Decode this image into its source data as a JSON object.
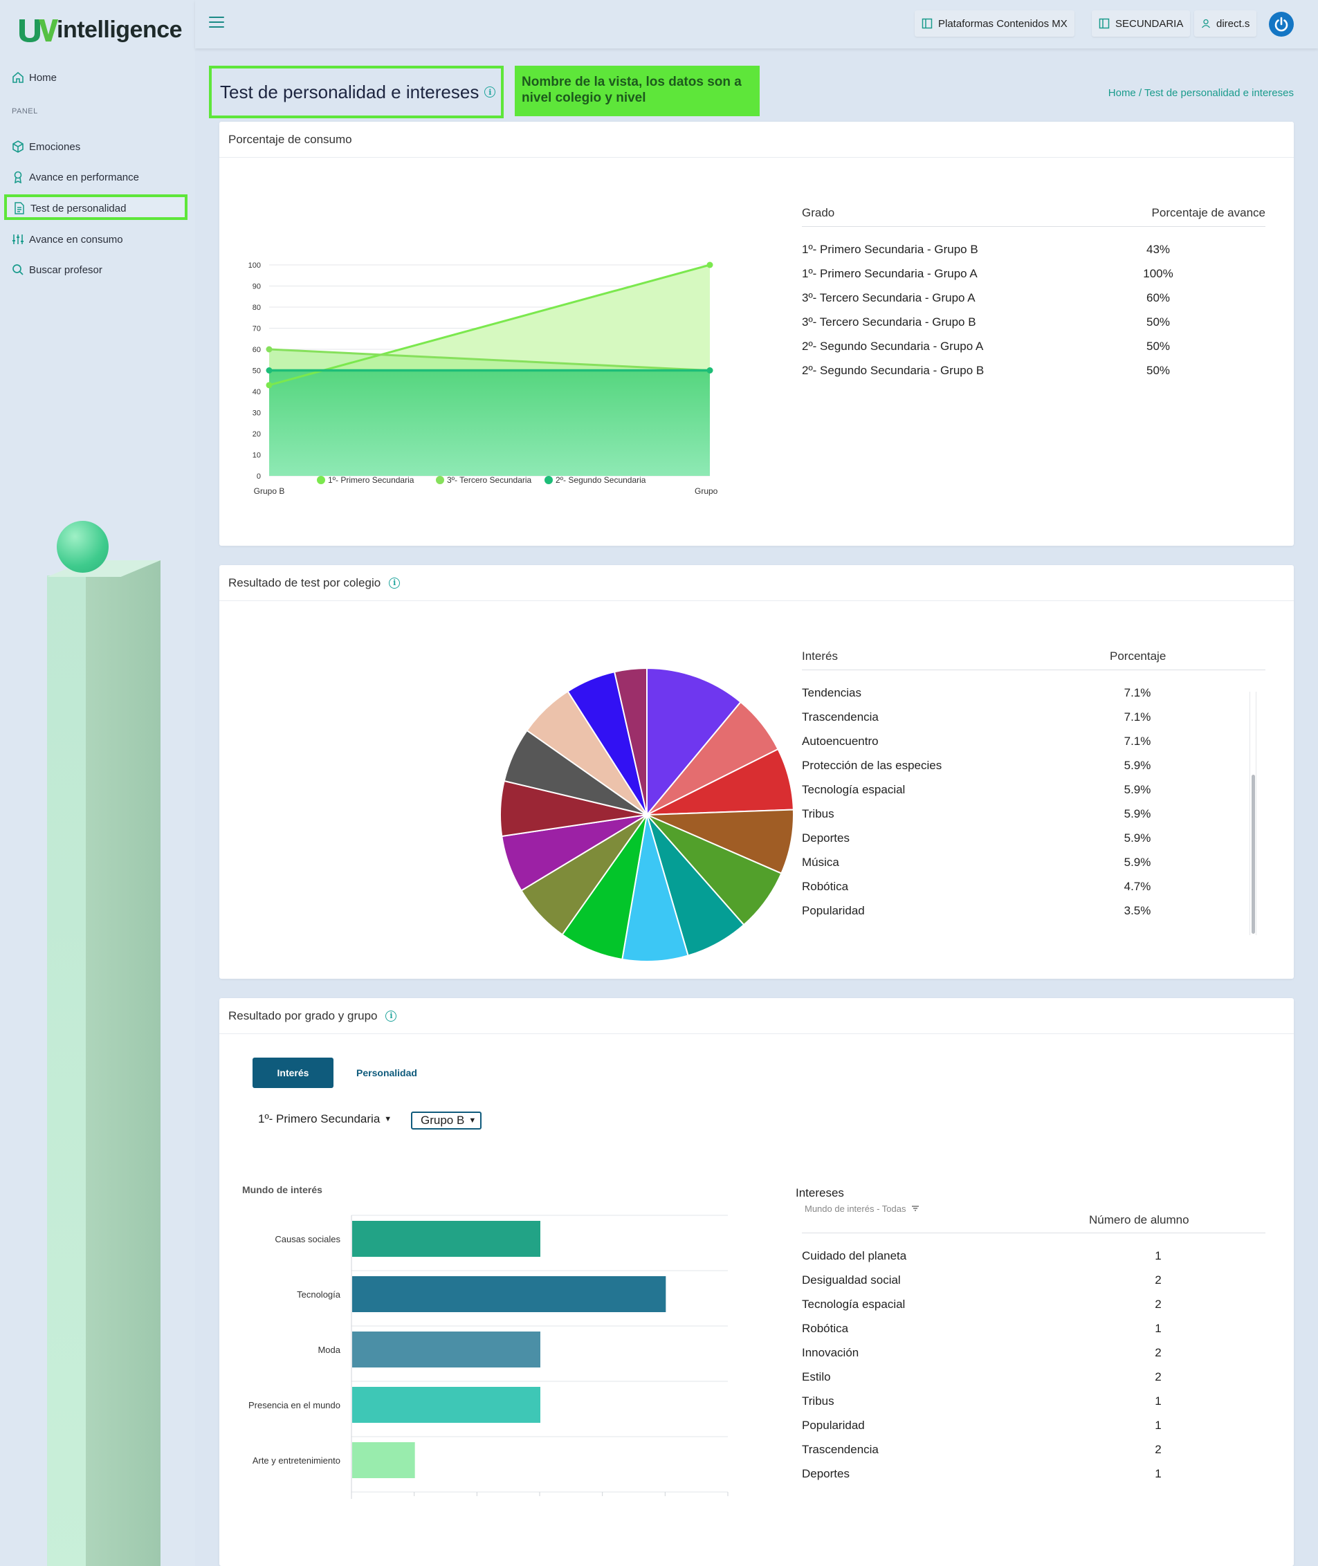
{
  "brand": {
    "logo_text": "intelligence"
  },
  "sidebar": {
    "home": "Home",
    "panel_label": "PANEL",
    "items": [
      {
        "label": "Emociones",
        "icon": "cube-icon"
      },
      {
        "label": "Avance en performance",
        "icon": "award-icon"
      },
      {
        "label": "Test de personalidad",
        "icon": "document-icon"
      },
      {
        "label": "Avance en consumo",
        "icon": "sliders-icon"
      },
      {
        "label": "Buscar profesor",
        "icon": "search-icon"
      }
    ]
  },
  "topbar": {
    "platform": "Plataformas Contenidos MX",
    "level": "SECUNDARIA",
    "user": "direct.s"
  },
  "header": {
    "title": "Test de personalidad e intereses",
    "note": "Nombre de la vista, los datos son a nivel colegio y nivel",
    "breadcrumb_home": "Home",
    "breadcrumb_sep": " / ",
    "breadcrumb_current": "Test de personalidad e intereses"
  },
  "consumo": {
    "title": "Porcentaje de consumo",
    "table_headers": [
      "Grado",
      "Porcentaje de avance"
    ],
    "rows": [
      [
        "1º- Primero Secundaria - Grupo B",
        "43%"
      ],
      [
        "1º- Primero Secundaria - Grupo A",
        "100%"
      ],
      [
        "3º- Tercero Secundaria - Grupo A",
        "60%"
      ],
      [
        "3º- Tercero Secundaria - Grupo B",
        "50%"
      ],
      [
        "2º- Segundo Secundaria - Grupo A",
        "50%"
      ],
      [
        "2º- Segundo Secundaria - Grupo B",
        "50%"
      ]
    ]
  },
  "colegio": {
    "title": "Resultado de test por colegio",
    "table_headers": [
      "Interés",
      "Porcentaje"
    ],
    "rows": [
      [
        "Tendencias",
        "7.1%"
      ],
      [
        "Trascendencia",
        "7.1%"
      ],
      [
        "Autoencuentro",
        "7.1%"
      ],
      [
        "Protección de las especies",
        "5.9%"
      ],
      [
        "Tecnología espacial",
        "5.9%"
      ],
      [
        "Tribus",
        "5.9%"
      ],
      [
        "Deportes",
        "5.9%"
      ],
      [
        "Música",
        "5.9%"
      ],
      [
        "Robótica",
        "4.7%"
      ],
      [
        "Popularidad",
        "3.5%"
      ]
    ]
  },
  "grado": {
    "title": "Resultado por grado y grupo",
    "tabs": [
      "Interés",
      "Personalidad"
    ],
    "grade_select": "1º- Primero Secundaria",
    "group_select": "Grupo B",
    "table_title": "Intereses",
    "table_filter": "Mundo de interés - Todas",
    "table_count_header": "Número de alumno",
    "rows": [
      [
        "Cuidado del planeta",
        "1"
      ],
      [
        "Desigualdad social",
        "2"
      ],
      [
        "Tecnología espacial",
        "2"
      ],
      [
        "Robótica",
        "1"
      ],
      [
        "Innovación",
        "2"
      ],
      [
        "Estilo",
        "2"
      ],
      [
        "Tribus",
        "1"
      ],
      [
        "Popularidad",
        "1"
      ],
      [
        "Trascendencia",
        "2"
      ],
      [
        "Deportes",
        "1"
      ]
    ]
  },
  "chart_data": [
    {
      "type": "area",
      "categories": [
        "Grupo B",
        "Grupo A"
      ],
      "ylim": [
        0,
        100
      ],
      "yticks": [
        0,
        10,
        20,
        30,
        40,
        50,
        60,
        70,
        80,
        90,
        100
      ],
      "series": [
        {
          "name": "1º- Primero Secundaria",
          "values": [
            43,
            100
          ],
          "color": "#7be84e"
        },
        {
          "name": "3º- Tercero Secundaria",
          "values": [
            60,
            50
          ],
          "color": "#86e05c"
        },
        {
          "name": "2º- Segundo Secundaria",
          "values": [
            50,
            50
          ],
          "color": "#1dbd78"
        }
      ],
      "legend": "bottom"
    },
    {
      "type": "pie",
      "slices": [
        {
          "value": 8.4,
          "color": "#6f37ef"
        },
        {
          "value": 5.0,
          "color": "#e46d6f"
        },
        {
          "value": 5.2,
          "color": "#d92e31"
        },
        {
          "value": 5.4,
          "color": "#a05d25"
        },
        {
          "value": 5.3,
          "color": "#52a02b"
        },
        {
          "value": 5.3,
          "color": "#059e95"
        },
        {
          "value": 5.5,
          "color": "#3cc7f5"
        },
        {
          "value": 5.4,
          "color": "#03c52a"
        },
        {
          "value": 5.0,
          "color": "#7e8c3a"
        },
        {
          "value": 4.8,
          "color": "#9c21a5"
        },
        {
          "value": 4.6,
          "color": "#9b2635"
        },
        {
          "value": 4.6,
          "color": "#575757"
        },
        {
          "value": 4.7,
          "color": "#ecc2ab"
        },
        {
          "value": 4.2,
          "color": "#3211f3"
        },
        {
          "value": 2.7,
          "color": "#9c2f6a"
        }
      ]
    },
    {
      "type": "bar",
      "title": "Mundo de interés",
      "orientation": "horizontal",
      "categories": [
        "Causas sociales",
        "Tecnología",
        "Moda",
        "Presencia en el mundo",
        "Arte y entretenimiento"
      ],
      "values": [
        3,
        5,
        3,
        3,
        1
      ],
      "colors": [
        "#22a386",
        "#247592",
        "#4b8fa6",
        "#3ec7b6",
        "#99ecad"
      ],
      "xlim": [
        0,
        6
      ]
    }
  ]
}
